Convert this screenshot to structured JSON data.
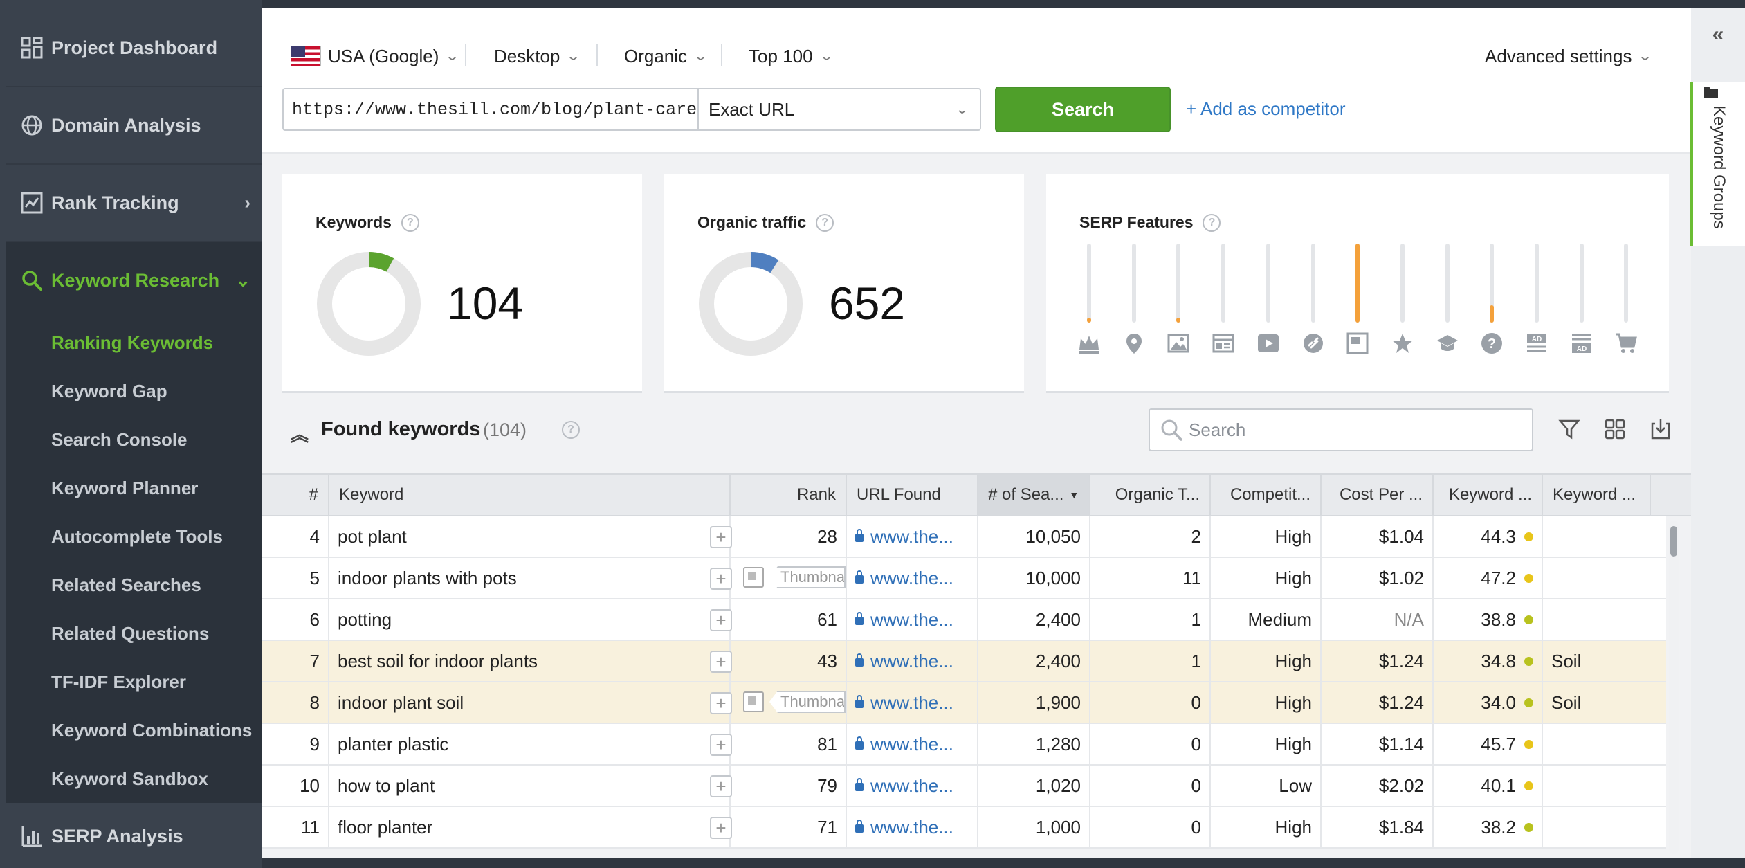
{
  "sidebar": {
    "nav": [
      {
        "label": "Project Dashboard",
        "icon": "dashboard-icon"
      },
      {
        "label": "Domain Analysis",
        "icon": "globe-icon"
      },
      {
        "label": "Rank Tracking",
        "icon": "chart-icon"
      },
      {
        "label": "Keyword Research",
        "icon": "search-icon"
      }
    ],
    "sub_items": [
      {
        "label": "Ranking Keywords",
        "active": true
      },
      {
        "label": "Keyword Gap"
      },
      {
        "label": "Search Console"
      },
      {
        "label": "Keyword Planner"
      },
      {
        "label": "Autocomplete Tools"
      },
      {
        "label": "Related Searches"
      },
      {
        "label": "Related Questions"
      },
      {
        "label": "TF-IDF Explorer"
      },
      {
        "label": "Keyword Combinations"
      },
      {
        "label": "Keyword Sandbox"
      }
    ],
    "bottom": {
      "label": "SERP Analysis",
      "icon": "bar-chart-icon"
    }
  },
  "toolbar": {
    "engine": "USA (Google)",
    "device": "Desktop",
    "search_type": "Organic",
    "depth": "Top 100",
    "advanced": "Advanced settings",
    "url_value": "https://www.thesill.com/blog/plant-care-repotting",
    "mode": "Exact URL",
    "search_label": "Search",
    "add_competitor": "+ Add as competitor"
  },
  "cards": {
    "keywords": {
      "title": "Keywords",
      "value": "104",
      "share": 0.08,
      "color": "#5ba32e"
    },
    "traffic": {
      "title": "Organic traffic",
      "value": "652",
      "share": 0.09,
      "color": "#4f7fc0"
    },
    "serp": {
      "title": "SERP Features",
      "features": [
        {
          "icon": "crown-icon",
          "level": 0.06
        },
        {
          "icon": "map-pin-icon",
          "level": 0
        },
        {
          "icon": "image-icon",
          "level": 0.06
        },
        {
          "icon": "news-icon",
          "level": 0
        },
        {
          "icon": "video-icon",
          "level": 0
        },
        {
          "icon": "link-icon",
          "level": 0
        },
        {
          "icon": "featured-snippet-icon",
          "level": 1.0
        },
        {
          "icon": "star-icon",
          "level": 0
        },
        {
          "icon": "graduation-cap-icon",
          "level": 0
        },
        {
          "icon": "question-icon",
          "level": 0.22
        },
        {
          "icon": "ad-top-icon",
          "level": 0
        },
        {
          "icon": "ad-bottom-icon",
          "level": 0
        },
        {
          "icon": "shopping-cart-icon",
          "level": 0
        }
      ]
    }
  },
  "found": {
    "title": "Found keywords",
    "count": "(104)",
    "search_placeholder": "Search"
  },
  "table": {
    "headers": [
      "#",
      "Keyword",
      "Rank",
      "URL Found",
      "# of Sea...",
      "Organic T...",
      "Competit...",
      "Cost Per ...",
      "Keyword ...",
      "Keyword ..."
    ],
    "rows": [
      {
        "n": "4",
        "kw": "pot plant",
        "rank": "28",
        "url": "www.the...",
        "searches": "10,050",
        "traffic": "2",
        "comp": "High",
        "cpc": "$1.04",
        "kd": "44.3",
        "group": "",
        "thumb": false,
        "hl": false
      },
      {
        "n": "5",
        "kw": "indoor plants with pots",
        "rank": "",
        "url": "www.the...",
        "searches": "10,000",
        "traffic": "11",
        "comp": "High",
        "cpc": "$1.02",
        "kd": "47.2",
        "group": "",
        "thumb": true,
        "hl": false
      },
      {
        "n": "6",
        "kw": "potting",
        "rank": "61",
        "url": "www.the...",
        "searches": "2,400",
        "traffic": "1",
        "comp": "Medium",
        "cpc": "N/A",
        "kd": "38.8",
        "group": "",
        "thumb": false,
        "hl": false
      },
      {
        "n": "7",
        "kw": "best soil for indoor plants",
        "rank": "43",
        "url": "www.the...",
        "searches": "2,400",
        "traffic": "1",
        "comp": "High",
        "cpc": "$1.24",
        "kd": "34.8",
        "group": "Soil",
        "thumb": false,
        "hl": true
      },
      {
        "n": "8",
        "kw": "indoor plant soil",
        "rank": "",
        "url": "www.the...",
        "searches": "1,900",
        "traffic": "0",
        "comp": "High",
        "cpc": "$1.24",
        "kd": "34.0",
        "group": "Soil",
        "thumb": true,
        "hl": true
      },
      {
        "n": "9",
        "kw": "planter plastic",
        "rank": "81",
        "url": "www.the...",
        "searches": "1,280",
        "traffic": "0",
        "comp": "High",
        "cpc": "$1.14",
        "kd": "45.7",
        "group": "",
        "thumb": false,
        "hl": false
      },
      {
        "n": "10",
        "kw": "how to plant",
        "rank": "79",
        "url": "www.the...",
        "searches": "1,020",
        "traffic": "0",
        "comp": "Low",
        "cpc": "$2.02",
        "kd": "40.1",
        "group": "",
        "thumb": false,
        "hl": false
      },
      {
        "n": "11",
        "kw": "floor planter",
        "rank": "71",
        "url": "www.the...",
        "searches": "1,000",
        "traffic": "0",
        "comp": "High",
        "cpc": "$1.84",
        "kd": "38.2",
        "group": "",
        "thumb": false,
        "hl": false
      }
    ],
    "thumb_label": "Thumbnail",
    "kd_dot_colors": {
      "yellow": "#e8c51a",
      "olive": "#b8c21e"
    }
  },
  "right_panel": {
    "tab_label": "Keyword Groups"
  },
  "colors": {
    "accent_green": "#6bbd34",
    "link_blue": "#2f78c6",
    "serp_orange": "#f4a13b"
  }
}
